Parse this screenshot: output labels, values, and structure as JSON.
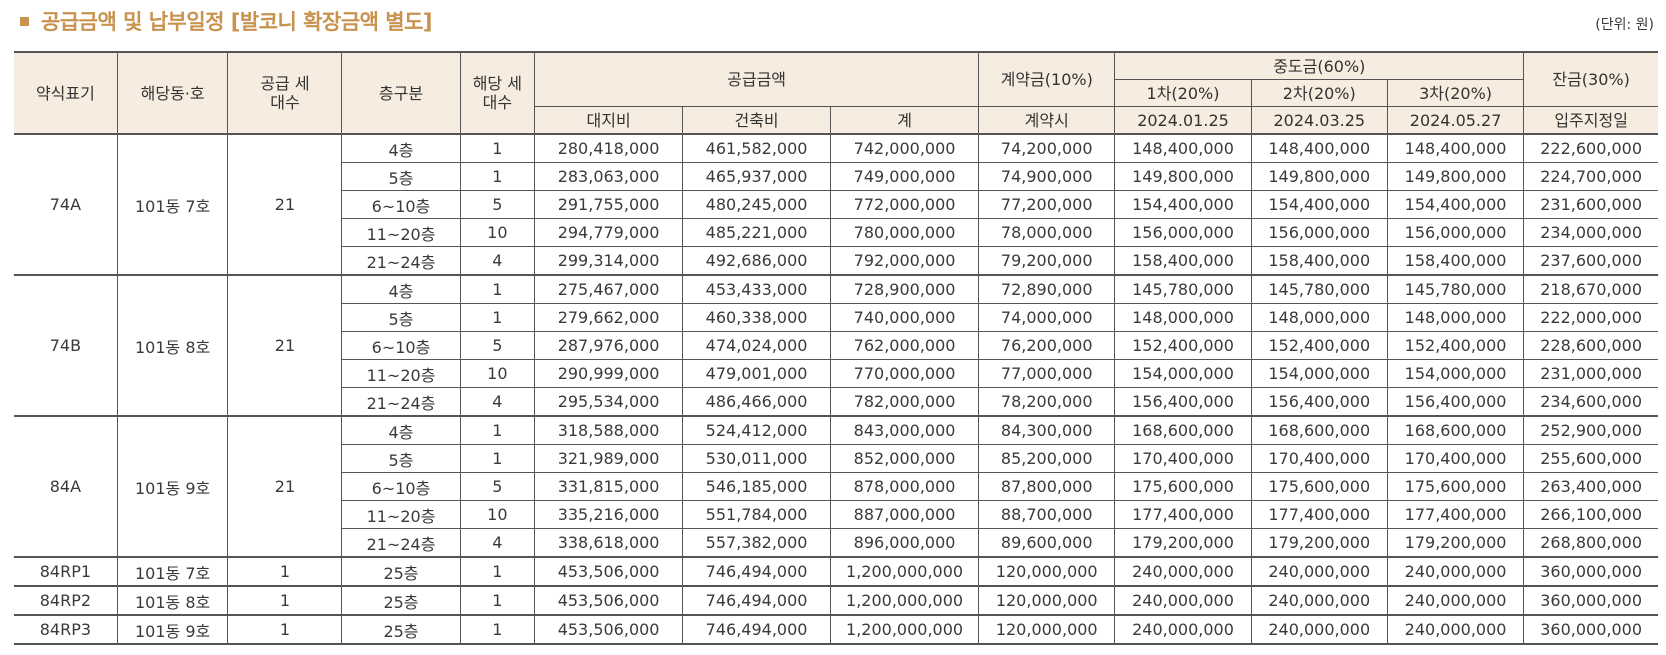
{
  "title": "공급금액 및 납부일정 [발코니 확장금액 별도]",
  "unit": "(단위: 원)",
  "headers": {
    "type": "약식표기",
    "unit_no": "해당동·호",
    "supply_households": "공급 세대수",
    "floor": "층구분",
    "households": "해당 세대수",
    "supply_price": "공급금액",
    "land": "대지비",
    "building": "건축비",
    "total": "계",
    "deposit": "계약금(10%)",
    "deposit_when": "계약시",
    "middle": "중도금(60%)",
    "mid1": "1차(20%)",
    "mid2": "2차(20%)",
    "mid3": "3차(20%)",
    "mid1_date": "2024.01.25",
    "mid2_date": "2024.03.25",
    "mid3_date": "2024.05.27",
    "balance": "잔금(30%)",
    "balance_when": "입주지정일"
  },
  "groups": [
    {
      "type": "74A",
      "unit_no": "101동 7호",
      "supply_households": "21",
      "rows": [
        {
          "floor": "4층",
          "households": "1",
          "land": "280,418,000",
          "building": "461,582,000",
          "total": "742,000,000",
          "deposit": "74,200,000",
          "mid1": "148,400,000",
          "mid2": "148,400,000",
          "mid3": "148,400,000",
          "balance": "222,600,000"
        },
        {
          "floor": "5층",
          "households": "1",
          "land": "283,063,000",
          "building": "465,937,000",
          "total": "749,000,000",
          "deposit": "74,900,000",
          "mid1": "149,800,000",
          "mid2": "149,800,000",
          "mid3": "149,800,000",
          "balance": "224,700,000"
        },
        {
          "floor": "6~10층",
          "households": "5",
          "land": "291,755,000",
          "building": "480,245,000",
          "total": "772,000,000",
          "deposit": "77,200,000",
          "mid1": "154,400,000",
          "mid2": "154,400,000",
          "mid3": "154,400,000",
          "balance": "231,600,000"
        },
        {
          "floor": "11~20층",
          "households": "10",
          "land": "294,779,000",
          "building": "485,221,000",
          "total": "780,000,000",
          "deposit": "78,000,000",
          "mid1": "156,000,000",
          "mid2": "156,000,000",
          "mid3": "156,000,000",
          "balance": "234,000,000"
        },
        {
          "floor": "21~24층",
          "households": "4",
          "land": "299,314,000",
          "building": "492,686,000",
          "total": "792,000,000",
          "deposit": "79,200,000",
          "mid1": "158,400,000",
          "mid2": "158,400,000",
          "mid3": "158,400,000",
          "balance": "237,600,000"
        }
      ]
    },
    {
      "type": "74B",
      "unit_no": "101동 8호",
      "supply_households": "21",
      "rows": [
        {
          "floor": "4층",
          "households": "1",
          "land": "275,467,000",
          "building": "453,433,000",
          "total": "728,900,000",
          "deposit": "72,890,000",
          "mid1": "145,780,000",
          "mid2": "145,780,000",
          "mid3": "145,780,000",
          "balance": "218,670,000"
        },
        {
          "floor": "5층",
          "households": "1",
          "land": "279,662,000",
          "building": "460,338,000",
          "total": "740,000,000",
          "deposit": "74,000,000",
          "mid1": "148,000,000",
          "mid2": "148,000,000",
          "mid3": "148,000,000",
          "balance": "222,000,000"
        },
        {
          "floor": "6~10층",
          "households": "5",
          "land": "287,976,000",
          "building": "474,024,000",
          "total": "762,000,000",
          "deposit": "76,200,000",
          "mid1": "152,400,000",
          "mid2": "152,400,000",
          "mid3": "152,400,000",
          "balance": "228,600,000"
        },
        {
          "floor": "11~20층",
          "households": "10",
          "land": "290,999,000",
          "building": "479,001,000",
          "total": "770,000,000",
          "deposit": "77,000,000",
          "mid1": "154,000,000",
          "mid2": "154,000,000",
          "mid3": "154,000,000",
          "balance": "231,000,000"
        },
        {
          "floor": "21~24층",
          "households": "4",
          "land": "295,534,000",
          "building": "486,466,000",
          "total": "782,000,000",
          "deposit": "78,200,000",
          "mid1": "156,400,000",
          "mid2": "156,400,000",
          "mid3": "156,400,000",
          "balance": "234,600,000"
        }
      ]
    },
    {
      "type": "84A",
      "unit_no": "101동 9호",
      "supply_households": "21",
      "rows": [
        {
          "floor": "4층",
          "households": "1",
          "land": "318,588,000",
          "building": "524,412,000",
          "total": "843,000,000",
          "deposit": "84,300,000",
          "mid1": "168,600,000",
          "mid2": "168,600,000",
          "mid3": "168,600,000",
          "balance": "252,900,000"
        },
        {
          "floor": "5층",
          "households": "1",
          "land": "321,989,000",
          "building": "530,011,000",
          "total": "852,000,000",
          "deposit": "85,200,000",
          "mid1": "170,400,000",
          "mid2": "170,400,000",
          "mid3": "170,400,000",
          "balance": "255,600,000"
        },
        {
          "floor": "6~10층",
          "households": "5",
          "land": "331,815,000",
          "building": "546,185,000",
          "total": "878,000,000",
          "deposit": "87,800,000",
          "mid1": "175,600,000",
          "mid2": "175,600,000",
          "mid3": "175,600,000",
          "balance": "263,400,000"
        },
        {
          "floor": "11~20층",
          "households": "10",
          "land": "335,216,000",
          "building": "551,784,000",
          "total": "887,000,000",
          "deposit": "88,700,000",
          "mid1": "177,400,000",
          "mid2": "177,400,000",
          "mid3": "177,400,000",
          "balance": "266,100,000"
        },
        {
          "floor": "21~24층",
          "households": "4",
          "land": "338,618,000",
          "building": "557,382,000",
          "total": "896,000,000",
          "deposit": "89,600,000",
          "mid1": "179,200,000",
          "mid2": "179,200,000",
          "mid3": "179,200,000",
          "balance": "268,800,000"
        }
      ]
    },
    {
      "type": "84RP1",
      "unit_no": "101동 7호",
      "supply_households": "1",
      "rows": [
        {
          "floor": "25층",
          "households": "1",
          "land": "453,506,000",
          "building": "746,494,000",
          "total": "1,200,000,000",
          "deposit": "120,000,000",
          "mid1": "240,000,000",
          "mid2": "240,000,000",
          "mid3": "240,000,000",
          "balance": "360,000,000"
        }
      ]
    },
    {
      "type": "84RP2",
      "unit_no": "101동 8호",
      "supply_households": "1",
      "rows": [
        {
          "floor": "25층",
          "households": "1",
          "land": "453,506,000",
          "building": "746,494,000",
          "total": "1,200,000,000",
          "deposit": "120,000,000",
          "mid1": "240,000,000",
          "mid2": "240,000,000",
          "mid3": "240,000,000",
          "balance": "360,000,000"
        }
      ]
    },
    {
      "type": "84RP3",
      "unit_no": "101동 9호",
      "supply_households": "1",
      "rows": [
        {
          "floor": "25층",
          "households": "1",
          "land": "453,506,000",
          "building": "746,494,000",
          "total": "1,200,000,000",
          "deposit": "120,000,000",
          "mid1": "240,000,000",
          "mid2": "240,000,000",
          "mid3": "240,000,000",
          "balance": "360,000,000"
        }
      ]
    }
  ]
}
